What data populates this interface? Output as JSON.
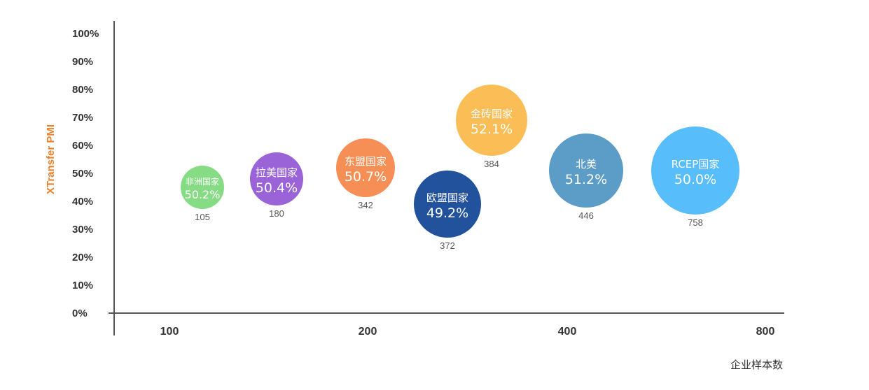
{
  "colors": {
    "ylabel": "#f07f2a",
    "axis": "#555555"
  },
  "chart_data": {
    "type": "scatter",
    "title": "",
    "xlabel": "企业样本数",
    "ylabel": "XTransfer PMI",
    "x_ticks": [
      "100",
      "200",
      "400",
      "800"
    ],
    "y_ticks": [
      "0%",
      "10%",
      "20%",
      "30%",
      "40%",
      "50%",
      "60%",
      "70%",
      "80%",
      "90%",
      "100%"
    ],
    "ylim": [
      0,
      100
    ],
    "points": [
      {
        "name": "非洲国家",
        "label": "50.2%",
        "value": 50.2,
        "count": "105",
        "y_position": 45,
        "color": "#86dc84"
      },
      {
        "name": "拉美国家",
        "label": "50.4%",
        "value": 50.4,
        "count": "180",
        "y_position": 48,
        "color": "#9b63d8"
      },
      {
        "name": "东盟国家",
        "label": "50.7%",
        "value": 50.7,
        "count": "342",
        "y_position": 52,
        "color": "#f68f55"
      },
      {
        "name": "欧盟国家",
        "label": "49.2%",
        "value": 49.2,
        "count": "372",
        "y_position": 39,
        "color": "#22529b"
      },
      {
        "name": "金砖国家",
        "label": "52.1%",
        "value": 52.1,
        "count": "384",
        "y_position": 69,
        "color": "#fbbe57"
      },
      {
        "name": "北美",
        "label": "51.2%",
        "value": 51.2,
        "count": "446",
        "y_position": 51,
        "color": "#5b9dc6"
      },
      {
        "name": "RCEP国家",
        "label": "50.0%",
        "value": 50.0,
        "count": "758",
        "y_position": 51,
        "color": "#57bdfb"
      }
    ]
  }
}
